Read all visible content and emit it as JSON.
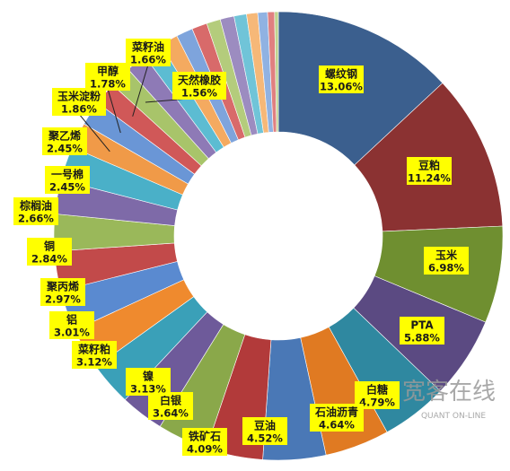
{
  "chart_data": {
    "type": "donut",
    "categories": [
      "螺纹钢",
      "豆粕",
      "玉米",
      "PTA",
      "白糖",
      "石油沥青",
      "豆油",
      "铁矿石",
      "白银",
      "镍",
      "菜籽粕",
      "铝",
      "聚丙烯",
      "铜",
      "棕榈油",
      "一号棉",
      "聚乙烯",
      "玉米淀粉",
      "甲醇",
      "菜籽油",
      "天然橡胶",
      null,
      null,
      null,
      null,
      null,
      null,
      null,
      null,
      null,
      null,
      null,
      null
    ],
    "values": [
      13.06,
      11.24,
      6.98,
      5.88,
      4.79,
      4.64,
      4.52,
      4.09,
      3.64,
      3.13,
      3.12,
      3.01,
      2.97,
      2.84,
      2.66,
      2.45,
      2.45,
      1.86,
      1.78,
      1.66,
      1.56,
      1.5,
      1.4,
      1.3,
      1.2,
      1.1,
      1.0,
      1.0,
      0.9,
      0.8,
      0.7,
      0.5,
      0.27
    ],
    "value_labels": [
      "13.06%",
      "11.24%",
      "6.98%",
      "5.88%",
      "4.79%",
      "4.64%",
      "4.52%",
      "4.09%",
      "3.64%",
      "3.13%",
      "3.12%",
      "3.01%",
      "2.97%",
      "2.84%",
      "2.66%",
      "2.45%",
      "2.45%",
      "1.86%",
      "1.78%",
      "1.66%",
      "1.56%",
      null,
      null,
      null,
      null,
      null,
      null,
      null,
      null,
      null,
      null,
      null,
      null
    ],
    "colors": [
      "#3b5f8e",
      "#8b3232",
      "#6f8f30",
      "#5b4a82",
      "#2f88a0",
      "#e07a22",
      "#4a78b6",
      "#b23a3a",
      "#8aa84a",
      "#6e5a9a",
      "#3aa0b8",
      "#ef8a2e",
      "#5a8ad0",
      "#c24a4a",
      "#9ab85a",
      "#7e6aa8",
      "#4ab0c8",
      "#f09a48",
      "#6a96d6",
      "#d05858",
      "#a8c46a",
      "#8e7ab6",
      "#5cbcd2",
      "#f4aa60",
      "#7ea4dc",
      "#d86a6a",
      "#b4cc7c",
      "#9c8cc0",
      "#70c4d8",
      "#f6b878",
      "#90b2e2",
      "#e08080",
      "#c0d490"
    ],
    "watermark": {
      "title": "宽客在线",
      "subtitle": "QUANT ON-LINE"
    }
  }
}
